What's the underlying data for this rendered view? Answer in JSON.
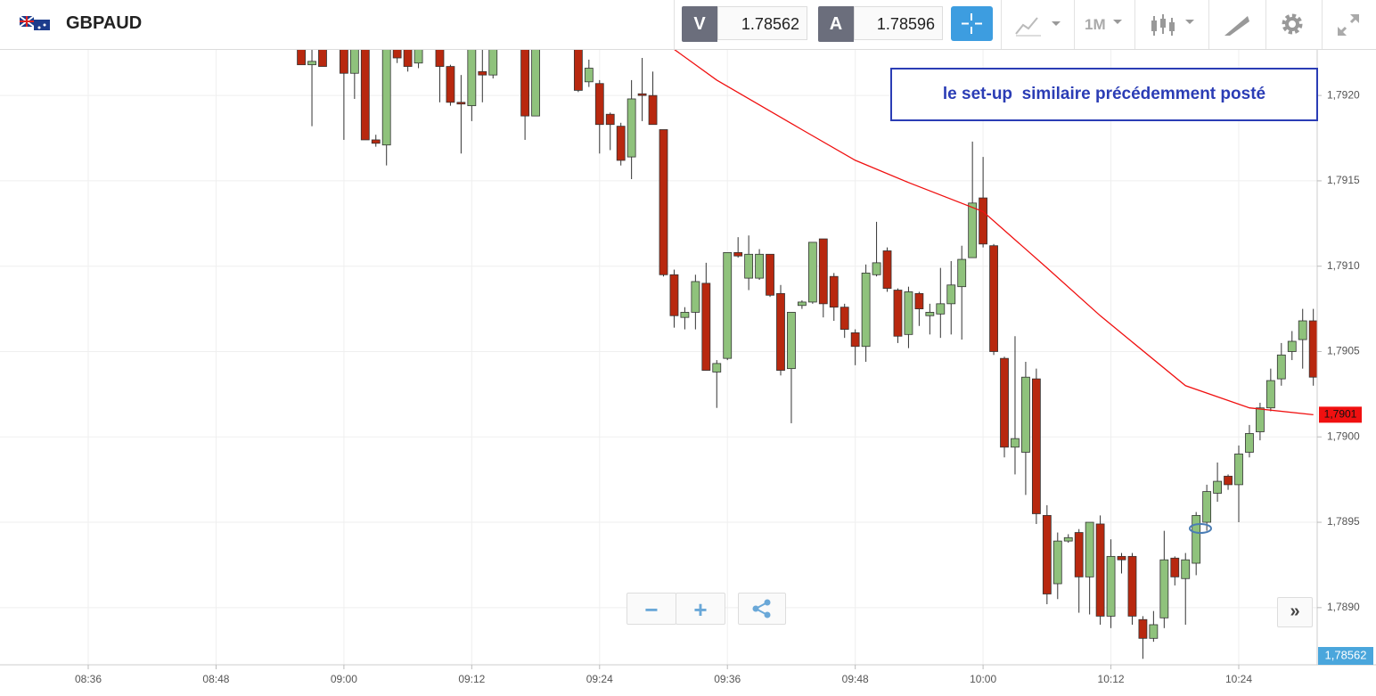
{
  "header": {
    "symbol": "GBPAUD",
    "bid_label": "V",
    "bid": "1.78562",
    "ask_label": "A",
    "ask": "1.78596",
    "timeframe": "1M"
  },
  "chart_data": {
    "type": "candlestick",
    "x": [
      "08:56",
      "08:57",
      "08:58",
      "09:00",
      "09:01",
      "09:02",
      "09:03",
      "09:04",
      "09:05",
      "09:06",
      "09:07",
      "09:09",
      "09:10",
      "09:11",
      "09:12",
      "09:13",
      "09:14",
      "09:17",
      "09:18",
      "09:22",
      "09:23",
      "09:24",
      "09:25",
      "09:26",
      "09:27",
      "09:28",
      "09:29",
      "09:30",
      "09:31",
      "09:32",
      "09:33",
      "09:34",
      "09:35",
      "09:36",
      "09:37",
      "09:38",
      "09:39",
      "09:40",
      "09:41",
      "09:42",
      "09:43",
      "09:44",
      "09:45",
      "09:46",
      "09:47",
      "09:48",
      "09:49",
      "09:50",
      "09:51",
      "09:52",
      "09:53",
      "09:54",
      "09:55",
      "09:56",
      "09:57",
      "09:58",
      "09:59",
      "10:00",
      "10:01",
      "10:02",
      "10:03",
      "10:04",
      "10:05",
      "10:06",
      "10:07",
      "10:08",
      "10:09",
      "10:10",
      "10:11",
      "10:12",
      "10:13",
      "10:14",
      "10:15",
      "10:16",
      "10:17",
      "10:18",
      "10:19",
      "10:20",
      "10:21",
      "10:22",
      "10:23",
      "10:24",
      "10:25",
      "10:26",
      "10:27",
      "10:28",
      "10:29",
      "10:30",
      "10:31"
    ],
    "open": [
      1.79227,
      1.79218,
      1.79227,
      1.79227,
      1.79213,
      1.79227,
      1.79174,
      1.79171,
      1.79227,
      1.79227,
      1.79219,
      1.79227,
      1.79217,
      1.79196,
      1.79194,
      1.79214,
      1.79212,
      1.79227,
      1.79188,
      1.79227,
      1.79208,
      1.79207,
      1.79189,
      1.79182,
      1.79164,
      1.79201,
      1.792,
      1.7918,
      1.79095,
      1.7907,
      1.79073,
      1.7909,
      1.79038,
      1.79046,
      1.79108,
      1.79093,
      1.79093,
      1.79107,
      1.79084,
      1.7904,
      1.79077,
      1.79079,
      1.79116,
      1.79094,
      1.79076,
      1.79061,
      1.79053,
      1.79095,
      1.79109,
      1.79086,
      1.7906,
      1.79084,
      1.79071,
      1.79072,
      1.79078,
      1.79088,
      1.79105,
      1.7914,
      1.79112,
      1.79046,
      1.78994,
      1.78991,
      1.79034,
      1.78954,
      1.78914,
      1.78939,
      1.78944,
      1.78918,
      1.78949,
      1.78895,
      1.7893,
      1.7893,
      1.78893,
      1.78882,
      1.78894,
      1.78929,
      1.78917,
      1.78926,
      1.7895,
      1.78967,
      1.78977,
      1.78972,
      1.78991,
      1.79003,
      1.79017,
      1.79034,
      1.7905,
      1.79057,
      1.79068
    ],
    "high": [
      1.79227,
      1.79227,
      1.79227,
      1.79227,
      1.79227,
      1.79227,
      1.79177,
      1.79227,
      1.79227,
      1.79227,
      1.79227,
      1.79227,
      1.79218,
      1.79212,
      1.79227,
      1.79227,
      1.79227,
      1.79227,
      1.79227,
      1.79227,
      1.79221,
      1.79209,
      1.7919,
      1.79184,
      1.79209,
      1.79222,
      1.79214,
      1.7918,
      1.79098,
      1.79076,
      1.79095,
      1.79102,
      1.79045,
      1.79108,
      1.79117,
      1.79118,
      1.7911,
      1.79107,
      1.79089,
      1.79073,
      1.7908,
      1.79114,
      1.79116,
      1.79096,
      1.79078,
      1.79063,
      1.79101,
      1.79126,
      1.79111,
      1.79087,
      1.79088,
      1.79085,
      1.79078,
      1.79099,
      1.79103,
      1.79112,
      1.79173,
      1.79164,
      1.79113,
      1.79047,
      1.79059,
      1.79044,
      1.7904,
      1.7896,
      1.78944,
      1.78943,
      1.78946,
      1.7895,
      1.78954,
      1.7894,
      1.78932,
      1.78932,
      1.78895,
      1.78898,
      1.78945,
      1.7893,
      1.78932,
      1.78956,
      1.78972,
      1.78985,
      1.78978,
      1.78995,
      1.79007,
      1.7902,
      1.7904,
      1.79055,
      1.79062,
      1.79075,
      1.79075
    ],
    "low": [
      1.79218,
      1.79182,
      1.79217,
      1.79174,
      1.79198,
      1.79174,
      1.7917,
      1.79159,
      1.79219,
      1.79214,
      1.79216,
      1.79196,
      1.79194,
      1.79166,
      1.79185,
      1.79196,
      1.7921,
      1.79174,
      1.79188,
      1.79202,
      1.79205,
      1.79166,
      1.79168,
      1.79159,
      1.79151,
      1.79185,
      1.79183,
      1.79094,
      1.79064,
      1.79063,
      1.79063,
      1.79039,
      1.79017,
      1.79045,
      1.79105,
      1.79086,
      1.79092,
      1.79082,
      1.79036,
      1.79008,
      1.79075,
      1.79078,
      1.7907,
      1.79068,
      1.79058,
      1.79042,
      1.79044,
      1.79094,
      1.79085,
      1.79055,
      1.79052,
      1.79065,
      1.7906,
      1.79058,
      1.7906,
      1.79057,
      1.79105,
      1.79111,
      1.79048,
      1.78988,
      1.78978,
      1.78966,
      1.78949,
      1.78902,
      1.78905,
      1.78938,
      1.78897,
      1.78896,
      1.7889,
      1.78888,
      1.7892,
      1.7889,
      1.7887,
      1.7888,
      1.78888,
      1.78913,
      1.7889,
      1.78919,
      1.78945,
      1.78962,
      1.78969,
      1.7895,
      1.78988,
      1.78998,
      1.79015,
      1.7903,
      1.79045,
      1.7904,
      1.7903
    ],
    "close": [
      1.79218,
      1.7922,
      1.79217,
      1.79213,
      1.79227,
      1.79174,
      1.79172,
      1.79227,
      1.79222,
      1.79217,
      1.79227,
      1.79217,
      1.79196,
      1.79195,
      1.79227,
      1.79212,
      1.79227,
      1.79188,
      1.79227,
      1.79203,
      1.79216,
      1.79183,
      1.79183,
      1.79162,
      1.79198,
      1.792,
      1.79183,
      1.79095,
      1.79071,
      1.79073,
      1.79091,
      1.79039,
      1.79043,
      1.79108,
      1.79106,
      1.79107,
      1.79107,
      1.79083,
      1.79039,
      1.79073,
      1.79079,
      1.79114,
      1.79078,
      1.79076,
      1.79063,
      1.79053,
      1.79096,
      1.79102,
      1.79087,
      1.79059,
      1.79085,
      1.79075,
      1.79073,
      1.79078,
      1.79089,
      1.79104,
      1.79137,
      1.79113,
      1.7905,
      1.78994,
      1.78999,
      1.79035,
      1.78955,
      1.78908,
      1.78939,
      1.78941,
      1.78918,
      1.7895,
      1.78895,
      1.7893,
      1.78928,
      1.78895,
      1.78882,
      1.7889,
      1.78928,
      1.78918,
      1.78928,
      1.78954,
      1.78968,
      1.78974,
      1.78972,
      1.7899,
      1.79002,
      1.79017,
      1.79033,
      1.79048,
      1.79056,
      1.79068,
      1.79035
    ],
    "up_color": "#8fc27c",
    "down_color": "#b8280f",
    "ma": {
      "x": [
        "09:31",
        "09:35",
        "09:43",
        "09:48",
        "09:53",
        "10:00",
        "10:06",
        "10:11",
        "10:19",
        "10:25",
        "10:31"
      ],
      "values": [
        1.79227,
        1.79209,
        1.7918,
        1.79162,
        1.79149,
        1.79132,
        1.79099,
        1.79071,
        1.7903,
        1.79017,
        1.79013
      ],
      "color": "#f01010",
      "value_label": "1,7901"
    },
    "price_label": "1,78562",
    "ylim": [
      1.788665,
      1.792267
    ],
    "yticks": [
      {
        "value": 1.792,
        "label": "1,7920"
      },
      {
        "value": 1.7915,
        "label": "1,7915"
      },
      {
        "value": 1.791,
        "label": "1,7910"
      },
      {
        "value": 1.7905,
        "label": "1,7905"
      },
      {
        "value": 1.79,
        "label": "1,7900"
      },
      {
        "value": 1.7895,
        "label": "1,7895"
      },
      {
        "value": 1.789,
        "label": "1,7890"
      }
    ],
    "xticks": [
      "08:36",
      "08:48",
      "09:00",
      "09:12",
      "09:24",
      "09:36",
      "09:48",
      "10:00",
      "10:12",
      "10:24"
    ],
    "grid": true,
    "annotation": "le set-up  similaire précédemment posté"
  }
}
